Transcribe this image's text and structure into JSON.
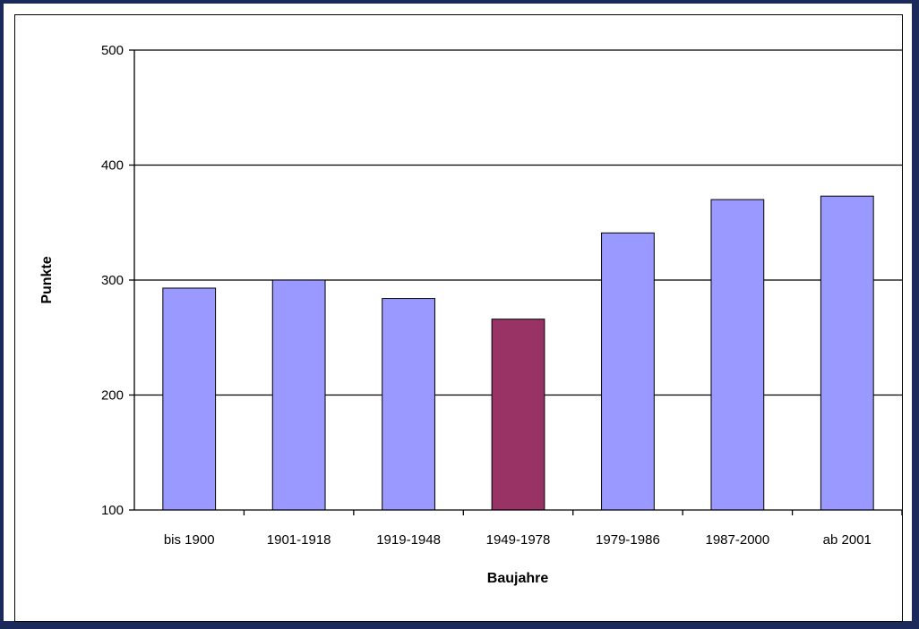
{
  "chart_data": {
    "type": "bar",
    "title": "",
    "xlabel": "Baujahre",
    "ylabel": "Punkte",
    "categories": [
      "bis 1900",
      "1901-1918",
      "1919-1948",
      "1949-1978",
      "1979-1986",
      "1987-2000",
      "ab 2001"
    ],
    "values": [
      293,
      300,
      284,
      266,
      341,
      370,
      373
    ],
    "highlight_index": 3,
    "ylim": [
      100,
      500
    ],
    "yticks": [
      100,
      200,
      300,
      400,
      500
    ],
    "grid": "horizontal",
    "legend": "none",
    "colors": {
      "bar": "#9999ff",
      "highlight": "#993366",
      "bar_edge": "#000000",
      "gridline": "#000000"
    }
  }
}
